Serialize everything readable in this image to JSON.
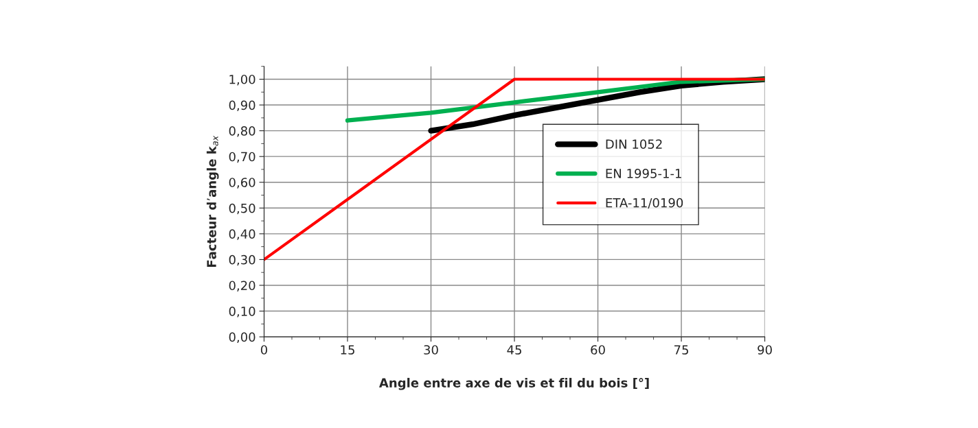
{
  "chart_data": {
    "type": "line",
    "xlabel": "Angle entre axe de vis et fil du bois [°]",
    "ylabel": "Facteur d’angle k$_{ax}$",
    "xlim": [
      0,
      90
    ],
    "xticks": [
      0,
      15,
      30,
      45,
      60,
      75,
      90
    ],
    "ylim": [
      0,
      1.05
    ],
    "yticks": [
      {
        "value": 0,
        "label": "0,00"
      },
      {
        "value": 0.1,
        "label": "0,10"
      },
      {
        "value": 0.2,
        "label": "0,20"
      },
      {
        "value": 0.3,
        "label": "0,30"
      },
      {
        "value": 0.4,
        "label": "0,40"
      },
      {
        "value": 0.5,
        "label": "0,50"
      },
      {
        "value": 0.6,
        "label": "0,60"
      },
      {
        "value": 0.7,
        "label": "0,70"
      },
      {
        "value": 0.8,
        "label": "0,80"
      },
      {
        "value": 0.9,
        "label": "0,90"
      },
      {
        "value": 1.0,
        "label": "1,00"
      }
    ],
    "grid": true,
    "legend": "right",
    "marker": "none",
    "line_style": "solid",
    "series": [
      {
        "name": "DIN 1052",
        "color": "#000000",
        "x": [
          30,
          37.5,
          45,
          52.5,
          60,
          67.5,
          75,
          82.5,
          90
        ],
        "values": [
          0.8,
          0.825,
          0.86,
          0.89,
          0.92,
          0.95,
          0.975,
          0.99,
          1.0
        ]
      },
      {
        "name": "EN 1995-1-1",
        "color": "#00b050",
        "x": [
          15,
          22.5,
          30,
          37.5,
          45,
          52.5,
          60,
          67.5,
          75,
          82.5,
          90
        ],
        "values": [
          0.84,
          0.855,
          0.87,
          0.89,
          0.91,
          0.93,
          0.95,
          0.97,
          0.99,
          0.995,
          1.0
        ]
      },
      {
        "name": "ETA-11/0190",
        "color": "#ff0000",
        "x": [
          0,
          45,
          90
        ],
        "values": [
          0.3,
          1.0,
          1.0
        ]
      }
    ]
  }
}
